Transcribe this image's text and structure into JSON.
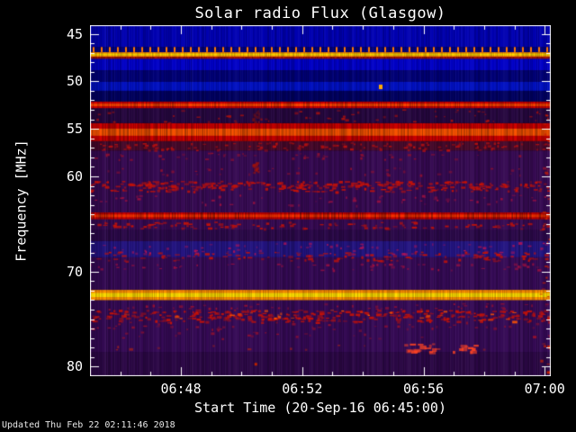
{
  "meta": {
    "updated": "Updated Thu Feb 22 02:11:46 2018"
  },
  "chart_data": {
    "type": "heatmap",
    "subtype": "radio-spectrogram",
    "title": "Solar radio Flux (Glasgow)",
    "xlabel": "Start Time (20-Sep-16 06:45:00)",
    "ylabel": "Frequency [MHz]",
    "legend": "none",
    "x_axis": {
      "start_time": "06:45:00",
      "span_minutes": 15.2,
      "minor_step_minutes": 1,
      "major_ticks": [
        {
          "label": "06:48",
          "minute": 3
        },
        {
          "label": "06:52",
          "minute": 7
        },
        {
          "label": "06:56",
          "minute": 11
        },
        {
          "label": "07:00",
          "minute": 15
        }
      ]
    },
    "y_axis": {
      "top_mhz": 44.1,
      "bottom_mhz": 81.0,
      "minor_step_mhz": 1,
      "major_ticks": [
        {
          "label": "45",
          "mhz": 45
        },
        {
          "label": "50",
          "mhz": 50
        },
        {
          "label": "55",
          "mhz": 55
        },
        {
          "label": "60",
          "mhz": 60
        },
        {
          "label": "70",
          "mhz": 70
        },
        {
          "label": "80",
          "mhz": 80
        }
      ]
    },
    "colormap": {
      "background_low": "#0000b2",
      "mid_purple": "#360a52",
      "enhanced": "#cc0000",
      "strong": "#ff8800",
      "peak": "#ffee00"
    },
    "features": [
      {
        "type": "base",
        "f0": 44.1,
        "f1": 46.37,
        "color": "#0000b2"
      },
      {
        "type": "base",
        "f0": 46.37,
        "f1": 46.95,
        "color": "#000078"
      },
      {
        "type": "base",
        "f0": 46.95,
        "f1": 47.62,
        "color": "#000090"
      },
      {
        "type": "base",
        "f0": 47.62,
        "f1": 48.85,
        "color": "#0000c6"
      },
      {
        "type": "base",
        "f0": 48.85,
        "f1": 50.05,
        "color": "#000077"
      },
      {
        "type": "base",
        "f0": 50.05,
        "f1": 51.0,
        "color": "#0010c0"
      },
      {
        "type": "base",
        "f0": 51.0,
        "f1": 52.12,
        "color": "#000060"
      },
      {
        "type": "base",
        "f0": 52.12,
        "f1": 54.4,
        "color": "#26073f"
      },
      {
        "type": "base",
        "f0": 54.4,
        "f1": 56.3,
        "color": "#3a0614"
      },
      {
        "type": "base",
        "f0": 56.3,
        "f1": 57.3,
        "color": "#46092a"
      },
      {
        "type": "base",
        "f0": 57.3,
        "f1": 65.65,
        "color": "#360a52"
      },
      {
        "type": "base",
        "f0": 65.65,
        "f1": 66.8,
        "color": "#2b0949"
      },
      {
        "type": "base",
        "f0": 66.8,
        "f1": 68.5,
        "color": "#231480"
      },
      {
        "type": "base",
        "f0": 68.5,
        "f1": 78.5,
        "color": "#350a55"
      },
      {
        "type": "base",
        "f0": 78.5,
        "f1": 81.05,
        "color": "#2c0846"
      },
      {
        "type": "ticks",
        "f0": 46.4,
        "f1": 46.92,
        "color": "#ff7700",
        "period": 9,
        "w": 2
      },
      {
        "type": "solid",
        "f0": 46.94,
        "f1": 47.42,
        "color": "#ff9100",
        "core": "#ffdf00",
        "gap": 0.25
      },
      {
        "type": "solid",
        "f0": 47.42,
        "f1": 47.62,
        "color": "#bb1500",
        "gap": 0.4
      },
      {
        "type": "dot",
        "f0": 50.35,
        "x": 0.627,
        "w": 4,
        "h": 5,
        "color": "#ffaa00"
      },
      {
        "type": "solid",
        "f0": 52.14,
        "f1": 52.82,
        "color": "#d80000",
        "core": "#ff4400",
        "gap": 0.35
      },
      {
        "type": "speckle",
        "f0": 52.9,
        "f1": 54.3,
        "color": "#a31010",
        "count": 60,
        "dashW": 3,
        "dashH": 2
      },
      {
        "type": "blob",
        "f0": 52.9,
        "f1": 55.6,
        "x": 0.358,
        "w": 7,
        "color": "#7a0f10",
        "alpha": 0.5
      },
      {
        "type": "solid",
        "f0": 54.41,
        "f1": 56.28,
        "color": "#d40000",
        "core": "#ff5500",
        "gap": 0.35
      },
      {
        "type": "speckle",
        "f0": 56.4,
        "f1": 57.2,
        "color": "#b51010",
        "count": 140,
        "dashW": 3,
        "dashH": 2
      },
      {
        "type": "speckle",
        "f0": 57.5,
        "f1": 58.2,
        "color": "#8f1030",
        "count": 50,
        "dashW": 3,
        "dashH": 2
      },
      {
        "type": "speckle",
        "f0": 59.0,
        "f1": 59.8,
        "color": "#8f1030",
        "count": 40,
        "dashW": 3,
        "dashH": 2
      },
      {
        "type": "blob",
        "f0": 58.4,
        "f1": 59.6,
        "x": 0.358,
        "w": 6,
        "color": "#a31208",
        "alpha": 0.6
      },
      {
        "type": "speckle",
        "f0": 60.45,
        "f1": 60.78,
        "color": "#c41208",
        "count": 120,
        "dashW": 4,
        "dashH": 2
      },
      {
        "type": "speckle",
        "f0": 60.78,
        "f1": 61.1,
        "color": "#c41208",
        "count": 120,
        "dashW": 4,
        "dashH": 2
      },
      {
        "type": "speckle",
        "f0": 61.1,
        "f1": 61.55,
        "color": "#c41208",
        "count": 100,
        "dashW": 4,
        "dashH": 2
      },
      {
        "type": "speckle",
        "f0": 61.9,
        "f1": 63.0,
        "color": "#9a1040",
        "count": 60,
        "dashW": 3,
        "dashH": 2
      },
      {
        "type": "solid",
        "f0": 63.78,
        "f1": 64.5,
        "color": "#cf0202",
        "core": "#ff3300",
        "gap": 0.45
      },
      {
        "type": "speckle",
        "f0": 64.75,
        "f1": 65.45,
        "color": "#c41208",
        "count": 110,
        "dashW": 4,
        "dashH": 2
      },
      {
        "type": "speckle",
        "f0": 66.9,
        "f1": 68.4,
        "color": "#b01355",
        "count": 90,
        "dashW": 3,
        "dashH": 2
      },
      {
        "type": "speckle",
        "f0": 67.9,
        "f1": 68.85,
        "color": "#c41208",
        "count": 130,
        "dashW": 4,
        "dashH": 2
      },
      {
        "type": "speckle",
        "f0": 69.1,
        "f1": 69.8,
        "color": "#9a1040",
        "count": 60,
        "dashW": 3,
        "dashH": 2
      },
      {
        "type": "solid",
        "f0": 71.93,
        "f1": 73.0,
        "color": "#ff9100",
        "core": "#ffdf00",
        "gap": 0.25
      },
      {
        "type": "speckle",
        "f0": 73.3,
        "f1": 73.9,
        "color": "#9a1030",
        "count": 50,
        "dashW": 3,
        "dashH": 2
      },
      {
        "type": "speckle",
        "f0": 74.0,
        "f1": 74.45,
        "color": "#c41208",
        "count": 130,
        "dashW": 4,
        "dashH": 2
      },
      {
        "type": "speckle",
        "f0": 74.45,
        "f1": 74.9,
        "color": "#c41208",
        "count": 130,
        "dashW": 4,
        "dashH": 2
      },
      {
        "type": "speckle",
        "f0": 74.9,
        "f1": 75.3,
        "color": "#c41208",
        "count": 90,
        "dashW": 4,
        "dashH": 2
      },
      {
        "type": "speckle",
        "f0": 74.0,
        "f1": 75.2,
        "color": "#ff5500",
        "count": 30,
        "dashW": 4,
        "dashH": 2
      },
      {
        "type": "speckle",
        "f0": 75.4,
        "f1": 76.1,
        "color": "#8f1030",
        "count": 45,
        "dashW": 3,
        "dashH": 2
      },
      {
        "type": "speckle",
        "f0": 76.3,
        "f1": 77.0,
        "color": "#8f1030",
        "count": 25,
        "dashW": 3,
        "dashH": 2
      },
      {
        "type": "speckle",
        "f0": 77.5,
        "f1": 78.4,
        "color": "#ff4422",
        "count": 28,
        "x0": 0.68,
        "x1": 0.84,
        "dashW": 5,
        "dashH": 3
      },
      {
        "type": "speckle",
        "f0": 77.5,
        "f1": 78.3,
        "color": "#992020",
        "count": 12,
        "dashW": 3,
        "dashH": 2
      },
      {
        "type": "dot",
        "f0": 79.6,
        "x": 0.357,
        "w": 3,
        "h": 3,
        "color": "#bb2200"
      },
      {
        "type": "speckle",
        "f0": 52.5,
        "f1": 80.5,
        "color": "#cc2200",
        "count": 40,
        "x0": 0.975,
        "x1": 1.0,
        "dashW": 3,
        "dashH": 2
      }
    ]
  }
}
